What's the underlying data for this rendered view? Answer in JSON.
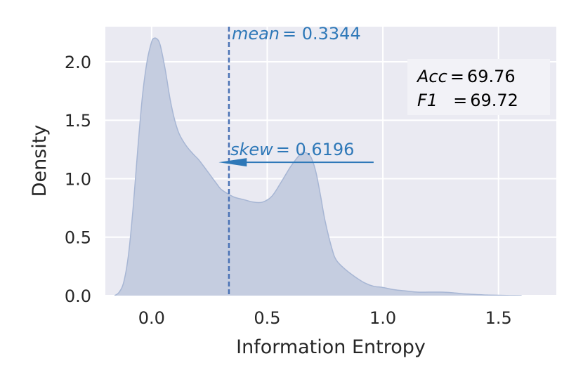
{
  "chart_data": {
    "type": "area",
    "xlabel": "Information Entropy",
    "ylabel": "Density",
    "xlim": [
      -0.2,
      1.75
    ],
    "ylim": [
      0,
      2.3
    ],
    "x_ticks": [
      0.0,
      0.5,
      1.0,
      1.5
    ],
    "x_tick_labels": [
      "0.0",
      "0.5",
      "1.0",
      "1.5"
    ],
    "y_ticks": [
      0.0,
      0.5,
      1.0,
      1.5,
      2.0
    ],
    "y_tick_labels": [
      "0.0",
      "0.5",
      "1.0",
      "1.5",
      "2.0"
    ],
    "grid": true,
    "series": [
      {
        "x": [
          -0.16,
          -0.14,
          -0.12,
          -0.1,
          -0.08,
          -0.06,
          -0.04,
          -0.02,
          0.0,
          0.01,
          0.02,
          0.03,
          0.04,
          0.06,
          0.08,
          0.1,
          0.12,
          0.15,
          0.18,
          0.2,
          0.22,
          0.25,
          0.28,
          0.3,
          0.33,
          0.36,
          0.4,
          0.44,
          0.48,
          0.52,
          0.56,
          0.6,
          0.63,
          0.65,
          0.67,
          0.69,
          0.71,
          0.73,
          0.75,
          0.78,
          0.8,
          0.84,
          0.88,
          0.92,
          0.96,
          1.0,
          1.05,
          1.1,
          1.15,
          1.2,
          1.25,
          1.3,
          1.35,
          1.4,
          1.45,
          1.5,
          1.55,
          1.6
        ],
        "y": [
          0.0,
          0.03,
          0.12,
          0.35,
          0.75,
          1.25,
          1.7,
          2.0,
          2.17,
          2.2,
          2.2,
          2.18,
          2.12,
          1.92,
          1.68,
          1.5,
          1.38,
          1.28,
          1.21,
          1.17,
          1.12,
          1.04,
          0.96,
          0.91,
          0.87,
          0.84,
          0.82,
          0.8,
          0.8,
          0.85,
          0.97,
          1.1,
          1.18,
          1.22,
          1.22,
          1.18,
          1.06,
          0.86,
          0.64,
          0.4,
          0.3,
          0.22,
          0.16,
          0.11,
          0.08,
          0.07,
          0.05,
          0.04,
          0.03,
          0.03,
          0.03,
          0.025,
          0.015,
          0.01,
          0.005,
          0.003,
          0.001,
          0.0
        ]
      }
    ],
    "fill_color": "#c5cde0",
    "line_color": "#a7b6d4",
    "mean": {
      "value": 0.3344,
      "label": "mean",
      "text": "= 0.3344",
      "color": "#4a72b5"
    },
    "skew": {
      "value": 0.6196,
      "label": "skew",
      "text": "= 0.6196",
      "color": "#2e78b8",
      "arrow_from_x": 0.96,
      "arrow_to_x": 0.29,
      "arrow_y": 1.14
    },
    "metrics": [
      {
        "name": "Acc",
        "sep": "=",
        "value": "69.76"
      },
      {
        "name": "F1",
        "sep": "=",
        "value": "69.72"
      }
    ],
    "plot_background": "#eaeaf2",
    "grid_color": "#ffffff"
  }
}
